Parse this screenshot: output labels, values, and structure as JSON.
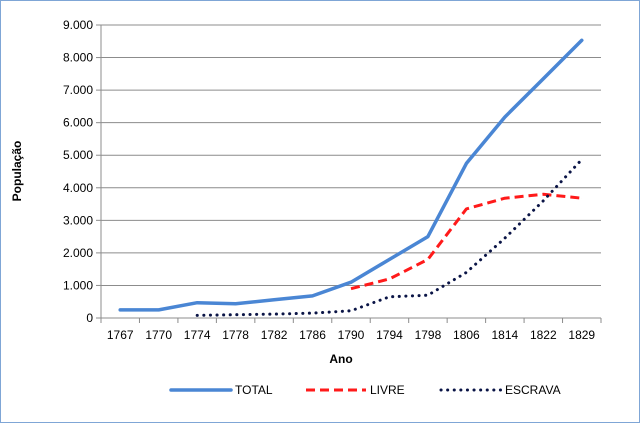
{
  "chart_data": {
    "type": "line",
    "title": "",
    "xlabel": "Ano",
    "ylabel": "População",
    "ylim": [
      0,
      9000
    ],
    "yticks": [
      "0",
      "1.000",
      "2.000",
      "3.000",
      "4.000",
      "5.000",
      "6.000",
      "7.000",
      "8.000",
      "9.000"
    ],
    "grid": true,
    "legend": "bottom",
    "categories": [
      "1767",
      "1770",
      "1774",
      "1778",
      "1782",
      "1786",
      "1790",
      "1794",
      "1798",
      "1806",
      "1814",
      "1822",
      "1829"
    ],
    "series": [
      {
        "name": "TOTAL",
        "color": "#4a86d4",
        "style": "solid",
        "values": [
          250,
          250,
          470,
          440,
          560,
          680,
          1100,
          1800,
          2500,
          4750,
          6170,
          7350,
          8530
        ]
      },
      {
        "name": "LIVRE",
        "color": "#ff1a1a",
        "style": "dashed",
        "values": [
          null,
          null,
          null,
          null,
          null,
          null,
          900,
          1200,
          1800,
          3350,
          3680,
          3800,
          3680
        ]
      },
      {
        "name": "ESCRAVA",
        "color": "#0a1446",
        "style": "dotted",
        "values": [
          null,
          null,
          80,
          100,
          120,
          150,
          220,
          650,
          700,
          1400,
          2450,
          3600,
          4870
        ]
      }
    ]
  }
}
